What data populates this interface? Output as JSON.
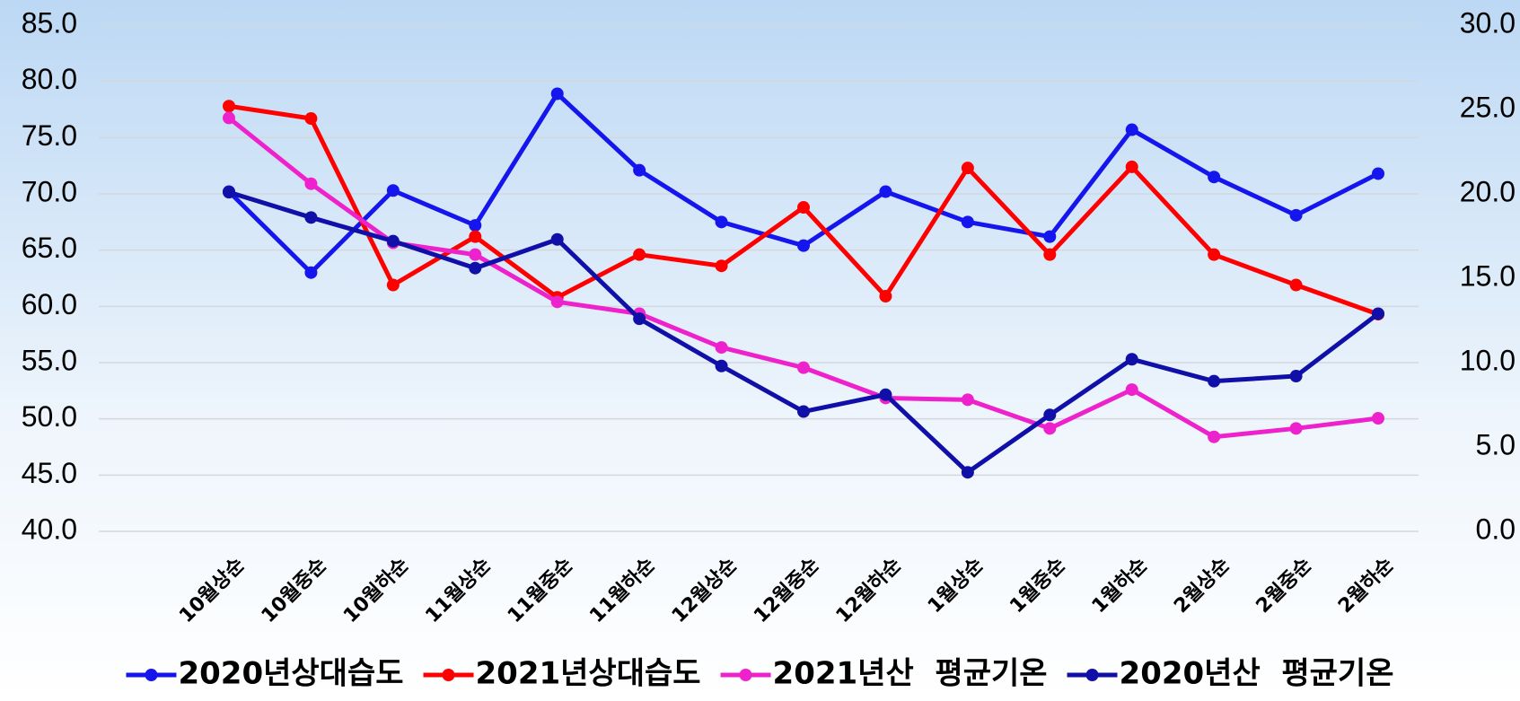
{
  "chart_data": {
    "type": "line",
    "categories": [
      "10월상순",
      "10월중순",
      "10월하순",
      "11월상순",
      "11월중순",
      "11월하순",
      "12월상순",
      "12월중순",
      "12월하순",
      "1월상순",
      "1월중순",
      "1월하순",
      "2월상순",
      "2월중순",
      "2월하순"
    ],
    "series": [
      {
        "name": "2020년상대습도",
        "color": "#1515ee",
        "values": [
          70.2,
          63.0,
          70.3,
          67.2,
          78.9,
          72.1,
          67.5,
          65.4,
          70.2,
          67.5,
          66.2,
          75.7,
          71.5,
          68.1,
          71.8
        ]
      },
      {
        "name": "2021년상대습도",
        "color": "#ff0000",
        "values": [
          77.8,
          76.7,
          61.9,
          66.2,
          60.8,
          64.6,
          63.6,
          68.8,
          60.9,
          72.3,
          64.6,
          72.4,
          64.6,
          61.9,
          59.3
        ]
      },
      {
        "name": "2021년산  평균기온",
        "color": "#ee22cc",
        "axis": "y2",
        "values": [
          24.5,
          20.6,
          17.1,
          16.4,
          13.6,
          12.9,
          10.9,
          9.7,
          7.9,
          7.8,
          6.1,
          8.4,
          5.6,
          6.1,
          6.7
        ]
      },
      {
        "name": "2020년산  평균기온",
        "color": "#1010a8",
        "axis": "y2",
        "values": [
          20.1,
          18.6,
          17.2,
          15.6,
          17.3,
          12.6,
          9.8,
          7.1,
          8.1,
          3.5,
          6.9,
          10.2,
          8.9,
          9.2,
          12.9
        ]
      }
    ],
    "ylim": [
      40,
      85
    ],
    "yticks": [
      {
        "value": 40,
        "label": "40.0"
      },
      {
        "value": 45,
        "label": "45.0"
      },
      {
        "value": 50,
        "label": "50.0"
      },
      {
        "value": 55,
        "label": "55.0"
      },
      {
        "value": 60,
        "label": "60.0"
      },
      {
        "value": 65,
        "label": "65.0"
      },
      {
        "value": 70,
        "label": "70.0"
      },
      {
        "value": 75,
        "label": "75.0"
      },
      {
        "value": 80,
        "label": "80.0"
      },
      {
        "value": 85,
        "label": "85.0"
      }
    ],
    "y2lim": [
      0,
      30
    ],
    "y2ticks": [
      {
        "value": 0,
        "label": "0.0"
      },
      {
        "value": 5,
        "label": "5.0"
      },
      {
        "value": 10,
        "label": "10.0"
      },
      {
        "value": 15,
        "label": "15.0"
      },
      {
        "value": 20,
        "label": "20.0"
      },
      {
        "value": 25,
        "label": "25.0"
      },
      {
        "value": 30,
        "label": "30.0"
      }
    ],
    "grid": true,
    "legend": "bottom"
  }
}
